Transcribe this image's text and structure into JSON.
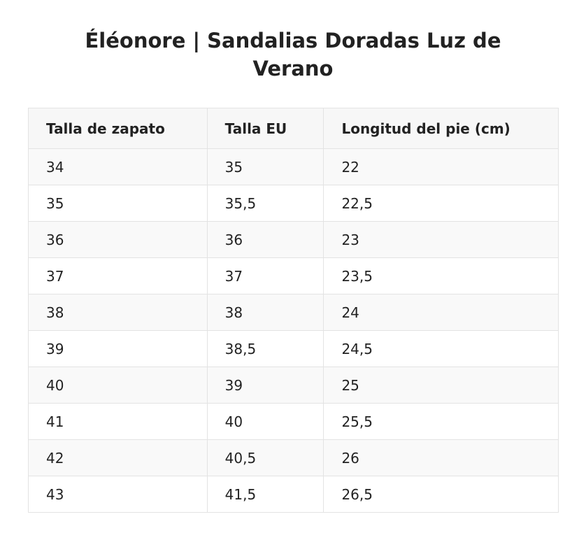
{
  "title": "Éléonore | Sandalias Doradas Luz de Verano",
  "table": {
    "headers": [
      "Talla de zapato",
      "Talla EU",
      "Longitud del pie (cm)"
    ],
    "rows": [
      [
        "34",
        "35",
        "22"
      ],
      [
        "35",
        "35,5",
        "22,5"
      ],
      [
        "36",
        "36",
        "23"
      ],
      [
        "37",
        "37",
        "23,5"
      ],
      [
        "38",
        "38",
        "24"
      ],
      [
        "39",
        "38,5",
        "24,5"
      ],
      [
        "40",
        "39",
        "25"
      ],
      [
        "41",
        "40",
        "25,5"
      ],
      [
        "42",
        "40,5",
        "26"
      ],
      [
        "43",
        "41,5",
        "26,5"
      ]
    ]
  }
}
